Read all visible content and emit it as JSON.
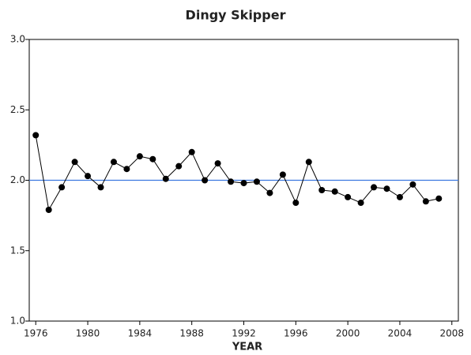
{
  "chart_data": {
    "type": "line",
    "title": "Dingy Skipper",
    "x_label": "YEAR",
    "x": [
      1976,
      1977,
      1978,
      1979,
      1980,
      1981,
      1982,
      1983,
      1984,
      1985,
      1986,
      1987,
      1988,
      1989,
      1990,
      1991,
      1992,
      1993,
      1994,
      1995,
      1996,
      1997,
      1998,
      1999,
      2000,
      2001,
      2002,
      2003,
      2004,
      2005,
      2006,
      2007
    ],
    "series": [
      {
        "color": "#000000",
        "values": [
          2.32,
          1.79,
          1.95,
          2.13,
          2.03,
          1.95,
          2.13,
          2.08,
          2.17,
          2.15,
          2.01,
          2.1,
          2.2,
          2.0,
          2.12,
          1.99,
          1.98,
          1.99,
          1.91,
          2.04,
          1.84,
          2.13,
          1.93,
          1.92,
          1.88,
          1.84,
          1.95,
          1.94,
          1.88,
          1.97,
          1.85,
          1.87
        ]
      }
    ],
    "reference_line": {
      "value": 2.0,
      "color": "#3b78e0"
    },
    "xlim": [
      1975.5,
      2008.5
    ],
    "xticks": [
      1976,
      1980,
      1984,
      1988,
      1992,
      1996,
      2000,
      2004,
      2008
    ],
    "ylim": [
      1,
      3
    ],
    "yticks": [
      {
        "value": 1,
        "label": "1.0"
      },
      1.5,
      {
        "value": 2,
        "label": "2.0"
      },
      2.5,
      {
        "value": 3,
        "label": "3.0"
      }
    ]
  }
}
